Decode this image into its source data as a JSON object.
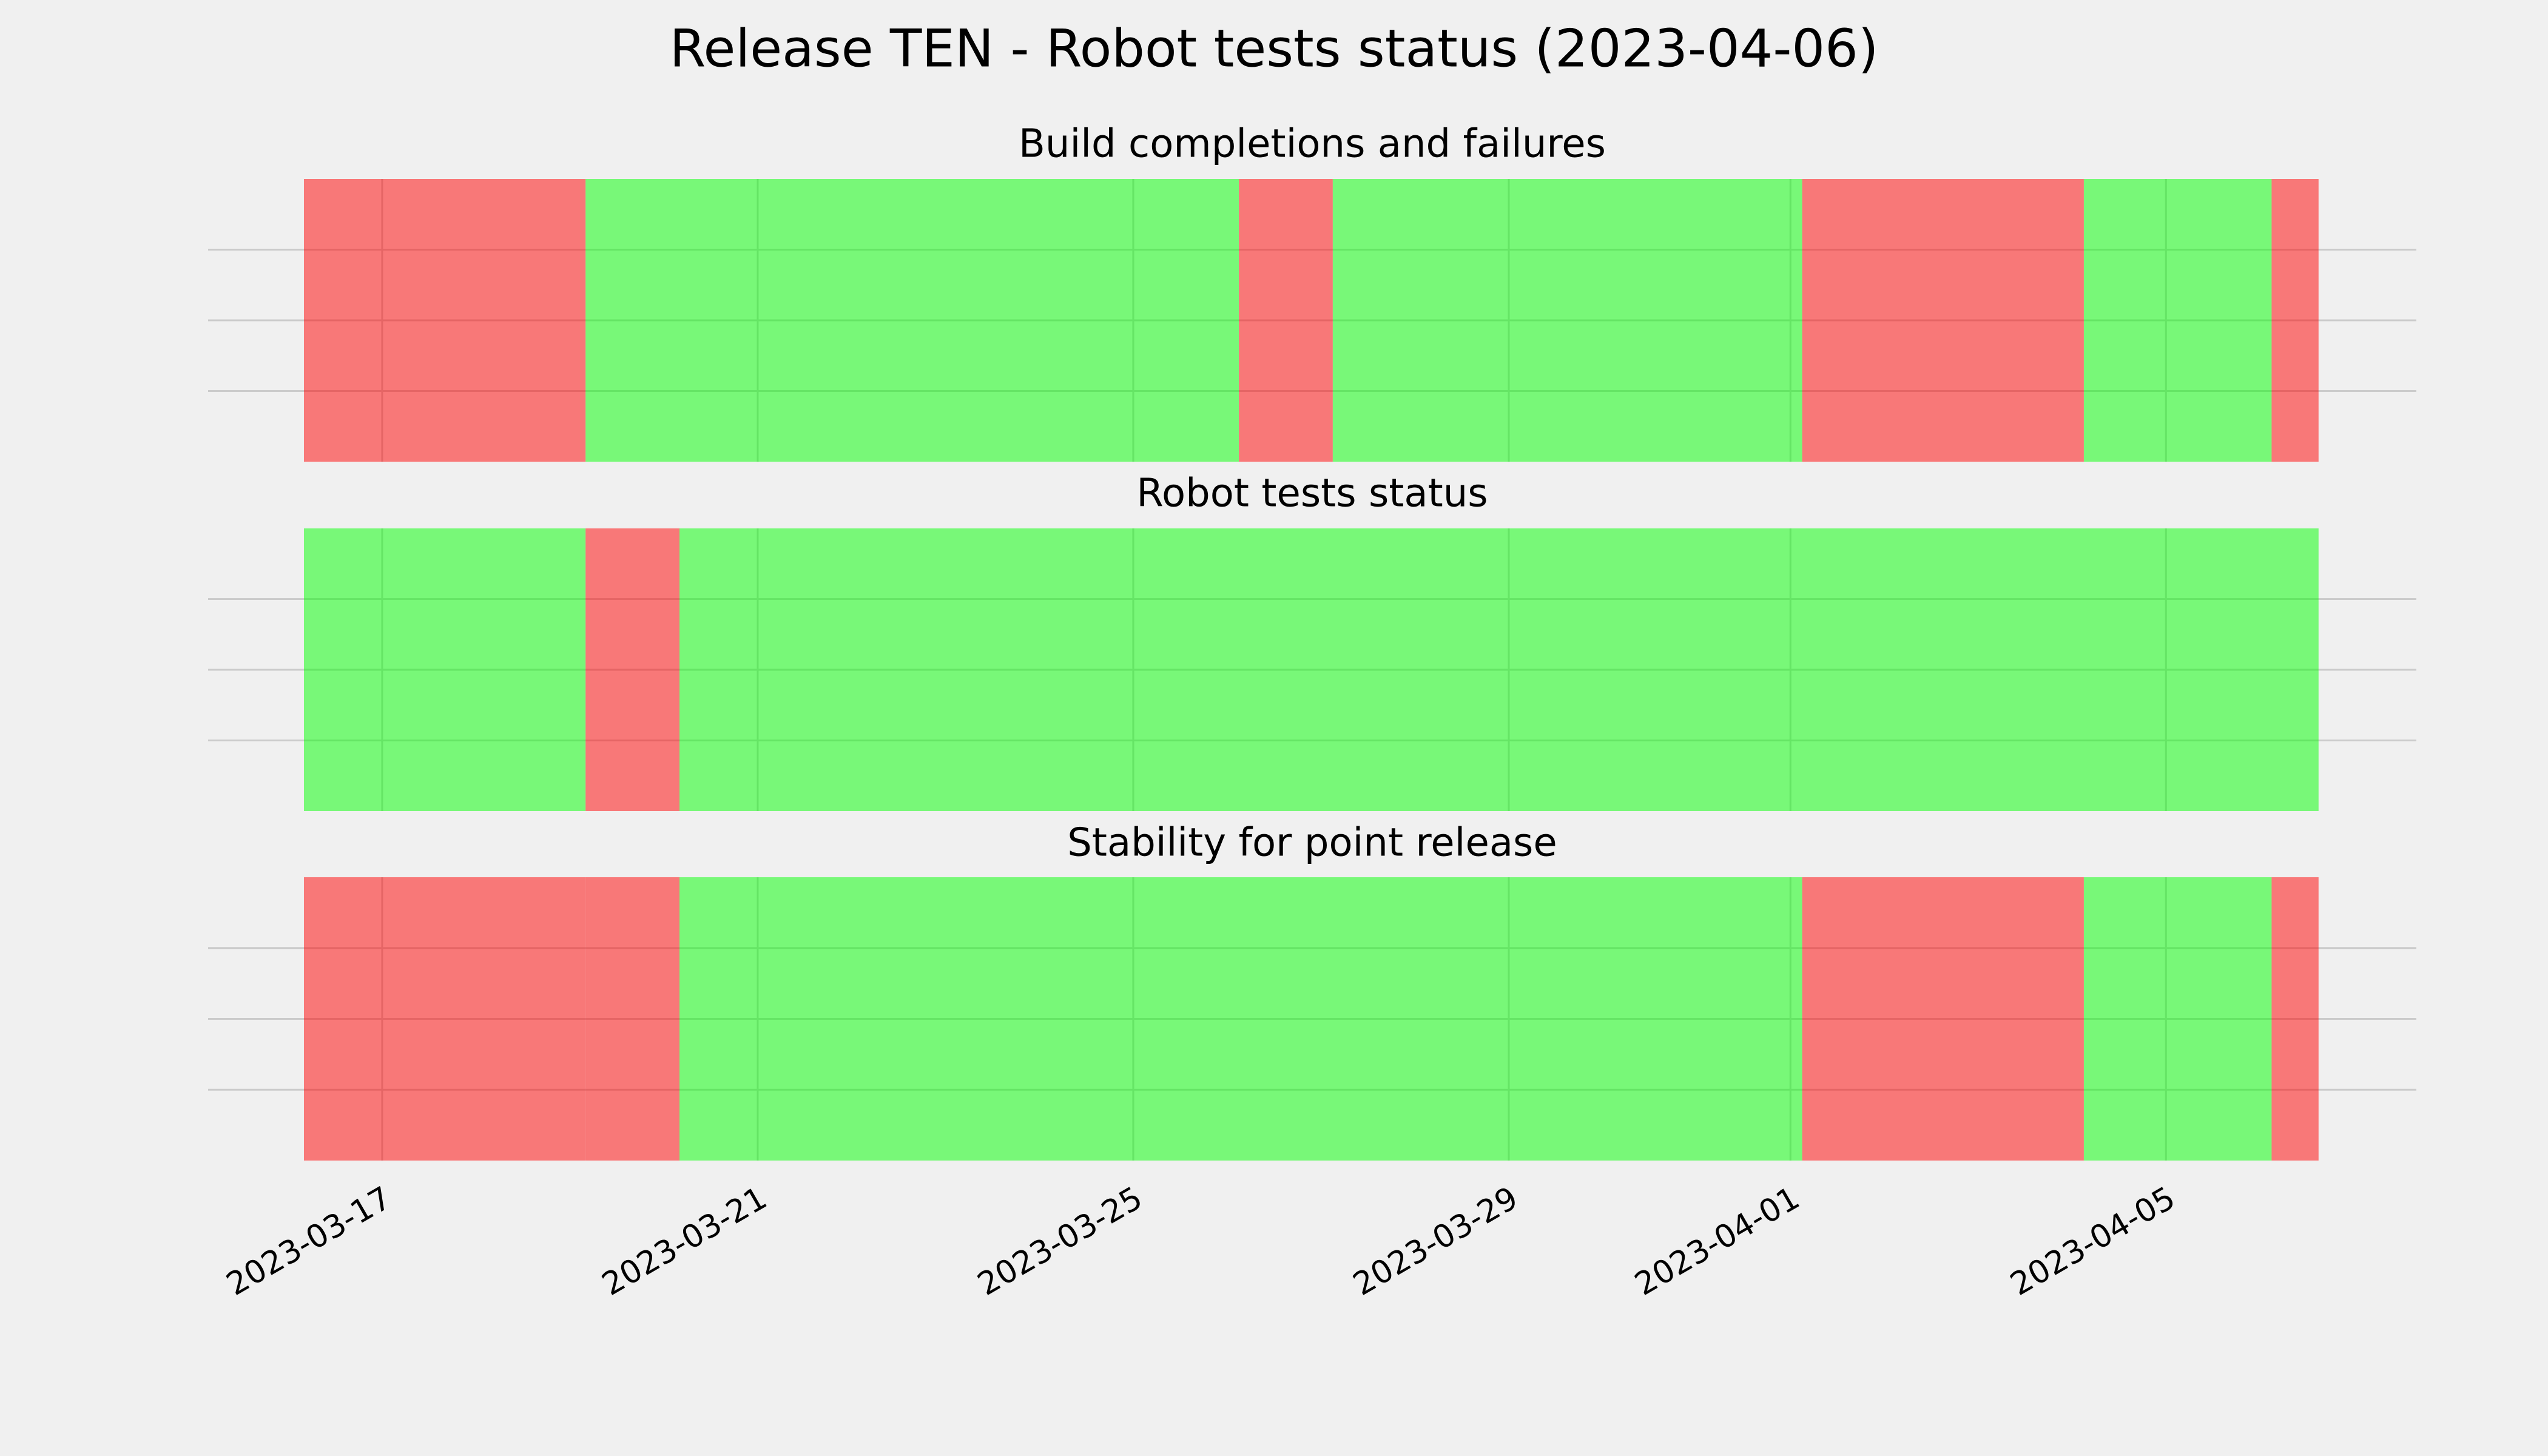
{
  "title": "Release TEN - Robot tests status (2023-04-06)",
  "chart_data": [
    {
      "type": "broken_barh",
      "title": "Build completions and failures",
      "alpha": 0.5,
      "grid": true,
      "xlim": [
        "2023-03-15T03:30",
        "2023-04-07T16:00"
      ],
      "xticks": [
        "2023-03-17",
        "2023-03-21",
        "2023-03-25",
        "2023-03-29",
        "2023-04-01",
        "2023-04-05"
      ],
      "ylim": [
        0,
        1
      ],
      "yticks": [
        0.25,
        0.5,
        0.75
      ],
      "spans": [
        {
          "start": "2023-03-16T04:00",
          "end": "2023-03-19T04:00",
          "color": "red"
        },
        {
          "start": "2023-03-19T04:00",
          "end": "2023-03-26T03:00",
          "color": "lime"
        },
        {
          "start": "2023-03-26T03:00",
          "end": "2023-03-27T03:00",
          "color": "red"
        },
        {
          "start": "2023-03-27T03:00",
          "end": "2023-04-01T03:00",
          "color": "lime"
        },
        {
          "start": "2023-04-01T03:00",
          "end": "2023-04-04T03:00",
          "color": "red"
        },
        {
          "start": "2023-04-04T03:00",
          "end": "2023-04-06T03:00",
          "color": "lime"
        },
        {
          "start": "2023-04-06T03:00",
          "end": "2023-04-06T15:00",
          "color": "red"
        }
      ]
    },
    {
      "type": "broken_barh",
      "title": "Robot tests status",
      "alpha": 0.5,
      "grid": true,
      "xlim": [
        "2023-03-15T03:30",
        "2023-04-07T16:00"
      ],
      "xticks": [
        "2023-03-17",
        "2023-03-21",
        "2023-03-25",
        "2023-03-29",
        "2023-04-01",
        "2023-04-05"
      ],
      "ylim": [
        0,
        1
      ],
      "yticks": [
        0.25,
        0.5,
        0.75
      ],
      "spans": [
        {
          "start": "2023-03-16T04:00",
          "end": "2023-03-19T04:00",
          "color": "lime"
        },
        {
          "start": "2023-03-19T04:00",
          "end": "2023-03-20T04:00",
          "color": "red"
        },
        {
          "start": "2023-03-20T04:00",
          "end": "2023-04-06T15:00",
          "color": "lime"
        }
      ]
    },
    {
      "type": "broken_barh",
      "title": "Stability for point release",
      "alpha": 0.5,
      "grid": true,
      "xlim": [
        "2023-03-15T03:30",
        "2023-04-07T16:00"
      ],
      "xticks": [
        "2023-03-17",
        "2023-03-21",
        "2023-03-25",
        "2023-03-29",
        "2023-04-01",
        "2023-04-05"
      ],
      "ylim": [
        0,
        1
      ],
      "yticks": [
        0.25,
        0.5,
        0.75
      ],
      "spans": [
        {
          "start": "2023-03-16T04:00",
          "end": "2023-03-19T04:00",
          "color": "red"
        },
        {
          "start": "2023-03-19T04:00",
          "end": "2023-03-20T04:00",
          "color": "red"
        },
        {
          "start": "2023-03-20T04:00",
          "end": "2023-04-01T03:00",
          "color": "lime"
        },
        {
          "start": "2023-04-01T03:00",
          "end": "2023-04-04T03:00",
          "color": "red"
        },
        {
          "start": "2023-04-04T03:00",
          "end": "2023-04-06T03:00",
          "color": "lime"
        },
        {
          "start": "2023-04-06T03:00",
          "end": "2023-04-06T15:00",
          "color": "red"
        }
      ],
      "show_xticklabels": true
    }
  ]
}
